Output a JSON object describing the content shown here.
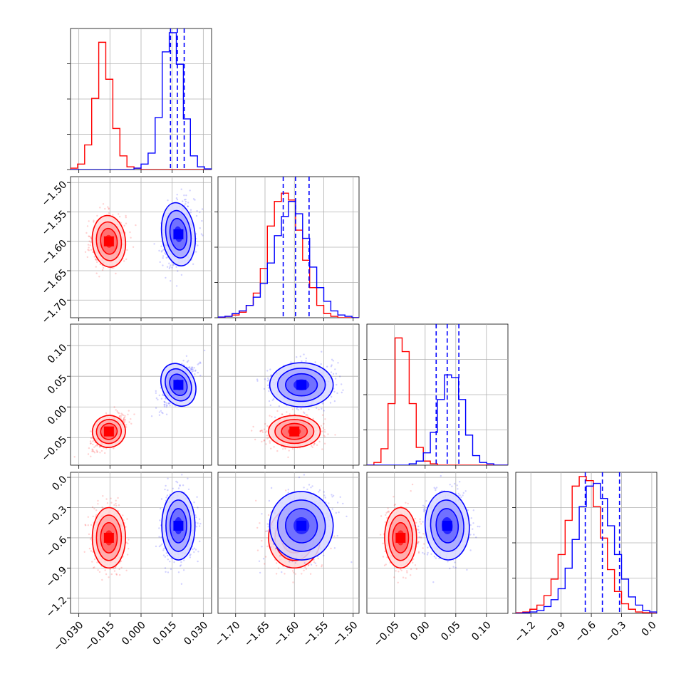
{
  "chart_data": {
    "type": "corner",
    "colors": {
      "series_a": "#ff0000",
      "series_b": "#0000ff"
    },
    "grid": true,
    "parameters": [
      {
        "range": [
          -0.034,
          0.034
        ],
        "ticks": [
          -0.03,
          -0.015,
          0.0,
          0.015,
          0.03
        ],
        "tick_labels": [
          "−0.030",
          "−0.015",
          "0.000",
          "0.015",
          "0.030"
        ]
      },
      {
        "range": [
          -1.73,
          -1.49
        ],
        "ticks": [
          -1.7,
          -1.65,
          -1.6,
          -1.55,
          -1.5
        ],
        "tick_labels": [
          "−1.70",
          "−1.65",
          "−1.60",
          "−1.55",
          "−1.50"
        ]
      },
      {
        "range": [
          -0.095,
          0.135
        ],
        "ticks": [
          -0.05,
          0.0,
          0.05,
          0.1
        ],
        "tick_labels": [
          "−0.05",
          "0.00",
          "0.05",
          "0.10"
        ]
      },
      {
        "range": [
          -1.35,
          0.05
        ],
        "ticks": [
          -1.2,
          -0.9,
          -0.6,
          -0.3,
          0.0
        ],
        "tick_labels": [
          "−1.2",
          "−0.9",
          "−0.6",
          "−0.3",
          "0.0"
        ]
      }
    ],
    "series": [
      {
        "name": "",
        "color": "#ff0000",
        "mean": [
          -0.0155,
          -1.6,
          -0.04,
          -0.6
        ],
        "std": [
          0.004,
          0.022,
          0.013,
          0.15
        ]
      },
      {
        "name": "",
        "color": "#0000ff",
        "mean": [
          0.018,
          -1.588,
          0.036,
          -0.48
        ],
        "std": [
          0.004,
          0.027,
          0.018,
          0.17
        ]
      }
    ],
    "quantile_lines": [
      [
        0.0142,
        0.0175,
        0.0208
      ],
      [
        -1.619,
        -1.598,
        -1.575
      ],
      [
        0.018,
        0.036,
        0.055
      ],
      [
        -0.66,
        -0.49,
        -0.32
      ]
    ],
    "histograms": [
      {
        "bin_edges": [
          -0.034,
          -0.0306,
          -0.0272,
          -0.0238,
          -0.0204,
          -0.017,
          -0.0136,
          -0.0102,
          -0.0068,
          -0.0034,
          0.0,
          0.0034,
          0.0068,
          0.0102,
          0.0136,
          0.017,
          0.0204,
          0.0238,
          0.0272,
          0.0306,
          0.034
        ],
        "counts": [
          [
            0.01,
            0.04,
            0.18,
            0.52,
            0.93,
            0.66,
            0.3,
            0.1,
            0.02,
            0.01,
            0,
            0,
            0,
            0,
            0,
            0,
            0,
            0,
            0,
            0
          ],
          [
            0,
            0,
            0,
            0,
            0,
            0,
            0,
            0,
            0,
            0.01,
            0.04,
            0.12,
            0.38,
            0.86,
            1.0,
            0.77,
            0.37,
            0.1,
            0.02,
            0.005
          ]
        ]
      },
      {
        "bin_edges": [
          -1.73,
          -1.718,
          -1.706,
          -1.694,
          -1.682,
          -1.67,
          -1.658,
          -1.646,
          -1.634,
          -1.622,
          -1.61,
          -1.598,
          -1.586,
          -1.574,
          -1.562,
          -1.55,
          -1.538,
          -1.526,
          -1.514,
          -1.502,
          -1.49
        ],
        "counts": [
          [
            0,
            0.01,
            0.02,
            0.04,
            0.09,
            0.18,
            0.36,
            0.67,
            0.85,
            0.91,
            0.86,
            0.64,
            0.42,
            0.22,
            0.09,
            0.03,
            0.01,
            0,
            0,
            0
          ],
          [
            0.005,
            0.01,
            0.03,
            0.05,
            0.09,
            0.15,
            0.25,
            0.4,
            0.6,
            0.74,
            0.85,
            0.76,
            0.58,
            0.37,
            0.22,
            0.12,
            0.05,
            0.02,
            0.01,
            0
          ]
        ]
      },
      {
        "bin_edges": [
          -0.095,
          -0.0835,
          -0.072,
          -0.0605,
          -0.049,
          -0.0375,
          -0.026,
          -0.0145,
          -0.003,
          0.0085,
          0.02,
          0.0315,
          0.043,
          0.0545,
          0.066,
          0.0775,
          0.089,
          0.1005,
          0.112,
          0.1235,
          0.135
        ],
        "counts": [
          [
            0,
            0.02,
            0.12,
            0.45,
            0.93,
            0.83,
            0.45,
            0.13,
            0.03,
            0.01,
            0,
            0,
            0,
            0,
            0,
            0,
            0,
            0,
            0,
            0
          ],
          [
            0,
            0,
            0,
            0,
            0,
            0,
            0.01,
            0.03,
            0.09,
            0.24,
            0.48,
            0.66,
            0.64,
            0.48,
            0.22,
            0.07,
            0.02,
            0.01,
            0,
            0
          ]
        ]
      },
      {
        "bin_edges": [
          -1.35,
          -1.28,
          -1.21,
          -1.14,
          -1.07,
          -1.0,
          -0.93,
          -0.86,
          -0.79,
          -0.72,
          -0.65,
          -0.58,
          -0.51,
          -0.44,
          -0.37,
          -0.3,
          -0.23,
          -0.16,
          -0.09,
          -0.02,
          0.05
        ],
        "counts": [
          [
            0.005,
            0.01,
            0.03,
            0.06,
            0.13,
            0.25,
            0.43,
            0.68,
            0.93,
            1.0,
            0.97,
            0.78,
            0.55,
            0.32,
            0.16,
            0.07,
            0.03,
            0.01,
            0.005,
            0
          ],
          [
            0,
            0.005,
            0.01,
            0.02,
            0.05,
            0.1,
            0.18,
            0.33,
            0.54,
            0.78,
            0.93,
            0.95,
            0.84,
            0.64,
            0.43,
            0.25,
            0.12,
            0.06,
            0.02,
            0.01
          ]
        ]
      }
    ]
  }
}
